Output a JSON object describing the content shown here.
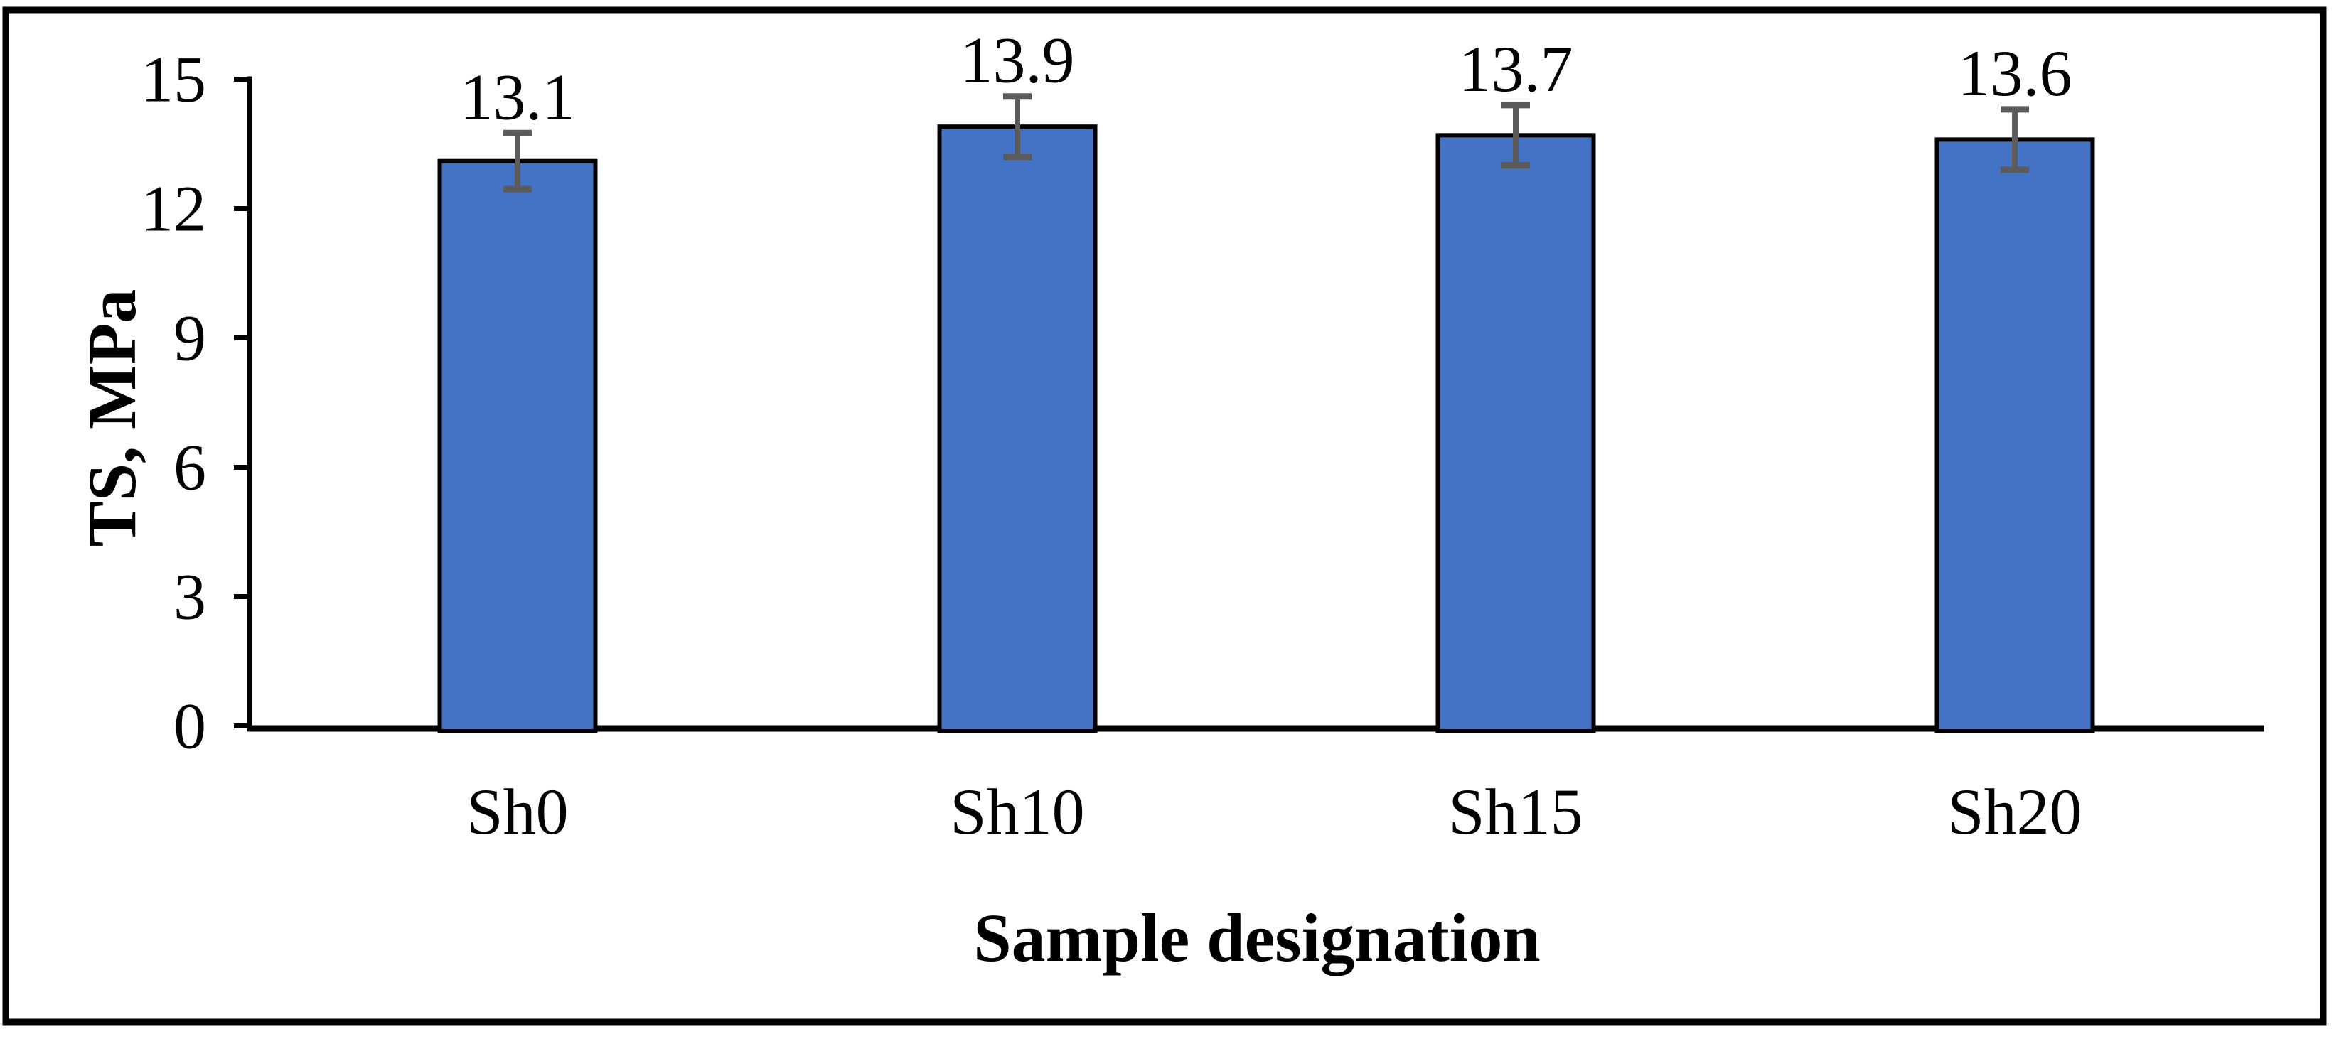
{
  "figure": {
    "description": "Bar chart of tensile strength (TS, MPa) for four sample designations, framed figure on white background"
  },
  "chart_data": {
    "type": "bar",
    "title": "",
    "categories": [
      "Sh0",
      "Sh10",
      "Sh15",
      "Sh20"
    ],
    "values": [
      13.1,
      13.9,
      13.7,
      13.6
    ],
    "data_labels": [
      "13.1",
      "13.9",
      "13.7",
      "13.6"
    ],
    "errors": [
      0.65,
      0.7,
      0.7,
      0.7
    ],
    "xlabel": "Sample designation",
    "ylabel": "TS, MPa",
    "ylim": [
      0,
      15
    ],
    "yticks": [
      0,
      3,
      6,
      9,
      12,
      15
    ],
    "ytick_labels": [
      "0",
      "3",
      "6",
      "9",
      "12",
      "15"
    ],
    "grid": false,
    "legend": null,
    "bar_color": "#4472C4",
    "bar_border_color": "#000000",
    "error_bar_color": "#5B5B5B",
    "axis_color": "#000000",
    "text_color": "#000000",
    "frame_color": "#000000"
  }
}
